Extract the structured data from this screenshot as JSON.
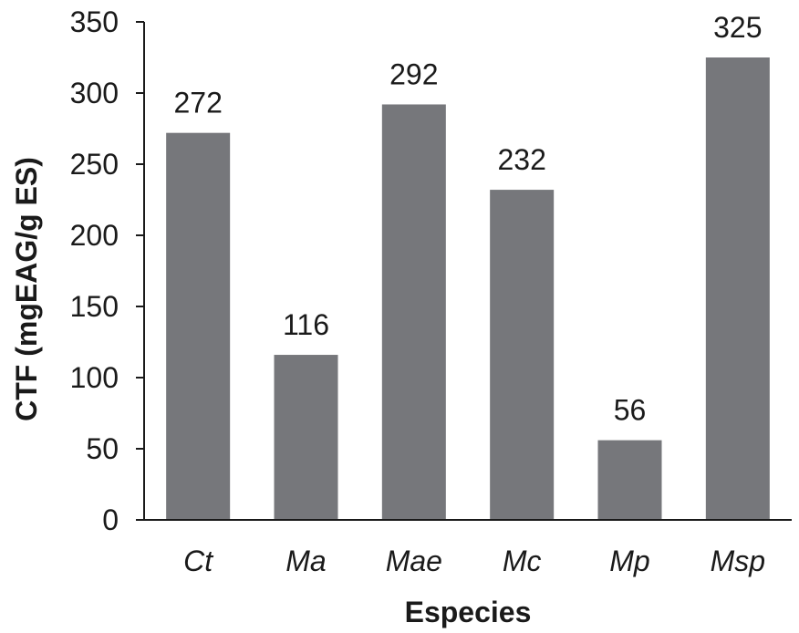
{
  "chart_data": {
    "type": "bar",
    "categories": [
      "Ct",
      "Ma",
      "Mae",
      "Mc",
      "Mp",
      "Msp"
    ],
    "values": [
      272,
      116,
      292,
      232,
      56,
      325
    ],
    "data_labels": [
      "272",
      "116",
      "292",
      "232",
      "56",
      "325"
    ],
    "title": "",
    "xlabel": "Especies",
    "ylabel": "CTF (mgEAG/g ES)",
    "ylim": [
      0,
      350
    ],
    "yticks": [
      0,
      50,
      100,
      150,
      200,
      250,
      300,
      350
    ],
    "ytick_labels": [
      "0",
      "50",
      "100",
      "150",
      "200",
      "250",
      "300",
      "350"
    ],
    "grid": false,
    "legend": "none",
    "bar_color": "#76777b",
    "axis_color": "#1a1a1a"
  }
}
